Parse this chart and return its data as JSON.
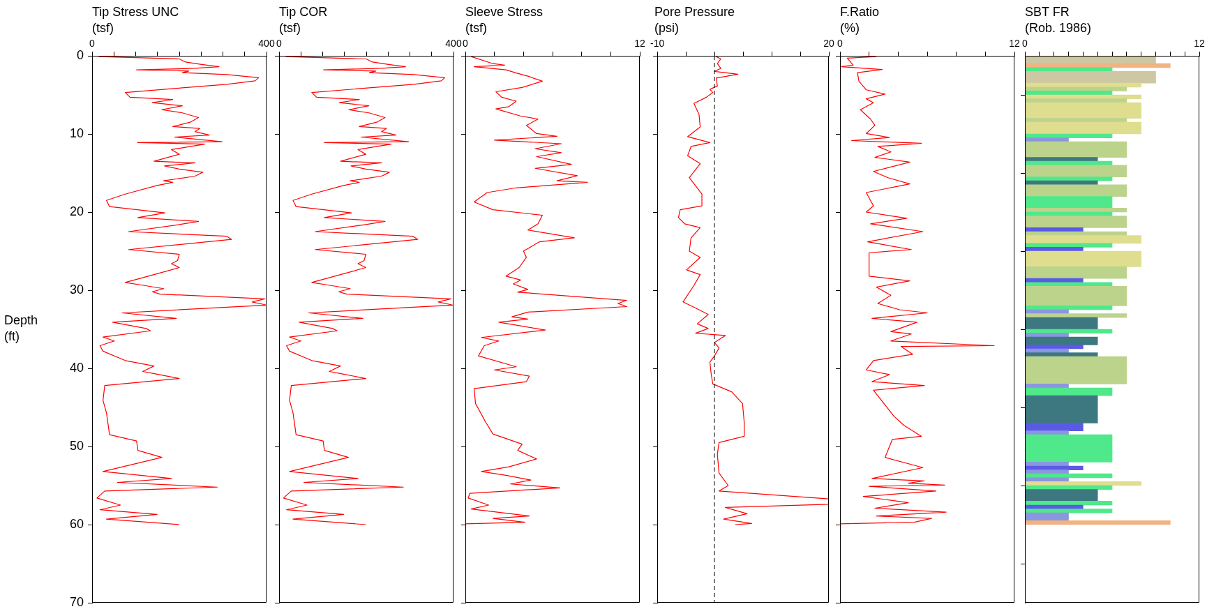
{
  "chart_data": [
    {
      "type": "line",
      "title": "Tip Stress UNC",
      "xlabel": "(tsf)",
      "ylabel": "Depth (ft)",
      "xlim": [
        0,
        400
      ],
      "xticks": [
        0,
        {
          "value": 50,
          "label": null
        },
        {
          "value": 100,
          "label": null
        },
        {
          "value": 150,
          "label": null
        },
        {
          "value": 200,
          "label": null
        },
        {
          "value": 250,
          "label": null
        },
        {
          "value": 300,
          "label": null
        },
        {
          "value": 350,
          "label": null
        },
        400
      ],
      "ylim": [
        70,
        0
      ],
      "yticks": [
        0,
        10,
        20,
        30,
        40,
        50,
        60,
        70
      ],
      "x": [
        15,
        200,
        214,
        251,
        291,
        236,
        102,
        222,
        207,
        309,
        382,
        374,
        309,
        207,
        76,
        87,
        185,
        138,
        207,
        160,
        207,
        244,
        225,
        185,
        247,
        236,
        269,
        189,
        298,
        104,
        258,
        182,
        200,
        142,
        236,
        166,
        200,
        254,
        236,
        164,
        185,
        149,
        76,
        33,
        40,
        167,
        105,
        244,
        200,
        84,
        309,
        320,
        84,
        200,
        196,
        182,
        200,
        142,
        76,
        120,
        164,
        138,
        156,
        396,
        367,
        400,
        69,
        193,
        47,
        124,
        134,
        25,
        51,
        18,
        25,
        76,
        142,
        116,
        145,
        200,
        29,
        25,
        33,
        40,
        102,
        105,
        160,
        25,
        182,
        58,
        287,
        29,
        11,
        65,
        18,
        149,
        33,
        200
      ],
      "series": [
        {
          "color": "#ff0000",
          "values": [
            0.1,
            0.4,
            0.8,
            1.1,
            1.4,
            1.6,
            1.8,
            1.95,
            2.15,
            2.4,
            2.8,
            3.2,
            3.65,
            4.1,
            4.7,
            5.3,
            5.6,
            6.0,
            6.4,
            6.9,
            7.3,
            7.9,
            8.5,
            9.05,
            9.3,
            9.7,
            10.15,
            10.4,
            11.0,
            11.1,
            11.3,
            12.0,
            12.6,
            13.5,
            13.7,
            14.1,
            14.5,
            14.9,
            15.4,
            16.0,
            16.2,
            16.6,
            17.7,
            18.5,
            19.3,
            20.1,
            20.7,
            21.2,
            21.6,
            22.5,
            23.1,
            23.5,
            24.8,
            25.4,
            26.2,
            26.6,
            27.1,
            28.0,
            29.0,
            29.4,
            29.8,
            30.2,
            30.5,
            31.1,
            31.5,
            31.9,
            32.9,
            33.6,
            34.1,
            34.9,
            35.2,
            36.0,
            36.5,
            37.1,
            37.8,
            39.0,
            39.7,
            40.4,
            40.7,
            41.3,
            42.2,
            44.1,
            45.7,
            48.5,
            49.3,
            50.5,
            51.4,
            53.2,
            54.1,
            54.6,
            55.2,
            55.7,
            56.6,
            57.5,
            58.1,
            58.7,
            59.3,
            60.0
          ]
        }
      ]
    },
    {
      "type": "line",
      "title": "Tip COR",
      "xlabel": "(tsf)",
      "tick_labels": "x",
      "xlim": [
        0,
        400
      ],
      "xticks": [
        0,
        {
          "value": 50,
          "label": null
        },
        {
          "value": 100,
          "label": null
        },
        {
          "value": 150,
          "label": null
        },
        {
          "value": 200,
          "label": null
        },
        {
          "value": 250,
          "label": null
        },
        {
          "value": 300,
          "label": null
        },
        {
          "value": 350,
          "label": null
        },
        400
      ],
      "ylim": [
        70,
        0
      ],
      "yticks": [
        0,
        10,
        20,
        30,
        40,
        50,
        60,
        70
      ],
      "x": [
        15,
        200,
        214,
        251,
        290,
        236,
        102,
        222,
        207,
        309,
        380,
        372,
        309,
        207,
        75,
        86,
        184,
        138,
        206,
        160,
        206,
        243,
        224,
        184,
        246,
        235,
        268,
        188,
        297,
        104,
        257,
        181,
        199,
        141,
        235,
        165,
        199,
        253,
        235,
        163,
        184,
        148,
        75,
        32,
        39,
        166,
        104,
        243,
        199,
        83,
        307,
        318,
        83,
        199,
        195,
        181,
        199,
        141,
        75,
        119,
        163,
        137,
        155,
        394,
        365,
        398,
        68,
        192,
        46,
        123,
        133,
        24,
        50,
        17,
        24,
        75,
        141,
        115,
        144,
        199,
        28,
        24,
        32,
        39,
        101,
        104,
        159,
        24,
        181,
        57,
        285,
        28,
        10,
        64,
        17,
        148,
        32,
        199
      ],
      "series": [
        {
          "color": "#ff0000",
          "values": [
            0.1,
            0.4,
            0.8,
            1.1,
            1.4,
            1.6,
            1.8,
            1.95,
            2.15,
            2.4,
            2.8,
            3.2,
            3.65,
            4.1,
            4.7,
            5.3,
            5.6,
            6.0,
            6.4,
            6.9,
            7.3,
            7.9,
            8.5,
            9.05,
            9.3,
            9.7,
            10.15,
            10.4,
            11.0,
            11.1,
            11.3,
            12.0,
            12.6,
            13.5,
            13.7,
            14.1,
            14.5,
            14.9,
            15.4,
            16.0,
            16.2,
            16.6,
            17.7,
            18.5,
            19.3,
            20.1,
            20.7,
            21.2,
            21.6,
            22.5,
            23.1,
            23.5,
            24.8,
            25.4,
            26.2,
            26.6,
            27.1,
            28.0,
            29.0,
            29.4,
            29.8,
            30.2,
            30.5,
            31.1,
            31.5,
            31.9,
            32.9,
            33.6,
            34.1,
            34.9,
            35.2,
            36.0,
            36.5,
            37.1,
            37.8,
            39.0,
            39.7,
            40.4,
            40.7,
            41.3,
            42.2,
            44.1,
            45.7,
            48.5,
            49.3,
            50.5,
            51.4,
            53.2,
            54.1,
            54.6,
            55.2,
            55.7,
            56.6,
            57.5,
            58.1,
            58.7,
            59.3,
            60.0
          ]
        }
      ]
    },
    {
      "type": "line",
      "title": "Sleeve Stress",
      "xlabel": "(tsf)",
      "tick_labels": "x",
      "xlim": [
        0,
        12
      ],
      "xticks": [
        0,
        {
          "value": 2,
          "label": null
        },
        {
          "value": 4,
          "label": null
        },
        {
          "value": 6,
          "label": null
        },
        {
          "value": 8,
          "label": null
        },
        {
          "value": 10,
          "label": null
        },
        12
      ],
      "ylim": [
        70,
        0
      ],
      "yticks": [
        0,
        10,
        20,
        30,
        40,
        50,
        60,
        70
      ],
      "x": [
        0.4,
        1.9,
        2.7,
        0.6,
        2.8,
        3.5,
        4.3,
        5.3,
        3.9,
        2.1,
        2.5,
        3.5,
        3.0,
        2.1,
        3.8,
        5.0,
        4.2,
        4.9,
        6.3,
        2.0,
        6.6,
        4.8,
        6.6,
        4.9,
        7.3,
        4.8,
        7.7,
        6.3,
        8.4,
        3.5,
        1.5,
        0.6,
        1.9,
        5.3,
        5.0,
        4.3,
        7.5,
        5.1,
        4.0,
        4.2,
        3.7,
        2.8,
        3.8,
        3.3,
        4.3,
        3.6,
        11.1,
        10.5,
        11.1,
        4.3,
        3.2,
        4.3,
        2.3,
        5.5,
        1.1,
        2.3,
        1.3,
        0.9,
        3.5,
        2.0,
        4.4,
        4.2,
        0.6,
        0.7,
        1.4,
        1.9,
        3.9,
        3.6,
        4.9,
        3.0,
        1.1,
        2.8,
        4.5,
        3.1,
        6.5,
        0.3,
        0.2,
        1.6,
        0.4,
        4.4,
        1.9,
        4.1,
        0
      ],
      "series": [
        {
          "color": "#ff0000",
          "values": [
            0.1,
            1.0,
            1.2,
            1.4,
            1.8,
            2.2,
            2.6,
            3.25,
            4.05,
            4.6,
            5.3,
            5.8,
            6.5,
            6.8,
            7.7,
            8.1,
            8.9,
            9.95,
            10.3,
            10.8,
            11.25,
            11.9,
            12.4,
            12.9,
            13.9,
            14.4,
            15.35,
            16.0,
            16.2,
            16.9,
            17.5,
            18.7,
            19.7,
            20.4,
            21.5,
            22.3,
            23.3,
            23.8,
            25.0,
            25.8,
            27.1,
            28.2,
            28.7,
            29.2,
            29.9,
            30.25,
            31.3,
            31.7,
            32.1,
            32.8,
            33.4,
            33.7,
            34.1,
            35.1,
            36.05,
            36.5,
            37.1,
            38.4,
            39.8,
            40.2,
            41.0,
            41.7,
            42.6,
            44.5,
            46.9,
            48.4,
            49.7,
            50.5,
            51.6,
            52.6,
            53.2,
            53.7,
            54.3,
            54.8,
            55.3,
            56.0,
            56.6,
            57.5,
            58.0,
            58.9,
            59.2,
            59.7,
            59.9
          ]
        }
      ]
    },
    {
      "type": "line",
      "title": "Pore Pressure",
      "xlabel": "(psi)",
      "tick_labels": "x",
      "xlim": [
        -10,
        20
      ],
      "xticks": [
        -10,
        {
          "value": -5,
          "label": null
        },
        {
          "value": 0,
          "label": null
        },
        {
          "value": 5,
          "label": null
        },
        {
          "value": 10,
          "label": null
        },
        {
          "value": 15,
          "label": null
        },
        20
      ],
      "ylim": [
        70,
        0
      ],
      "yticks": [
        0,
        10,
        20,
        30,
        40,
        50,
        60,
        70
      ],
      "ref_lines": [
        {
          "axis": "x",
          "value": 0,
          "color": "#000000",
          "line_style": "dashed"
        }
      ],
      "x": [
        0.3,
        1.1,
        0.5,
        1.1,
        0,
        4.1,
        0.3,
        0.5,
        -0.8,
        -0.3,
        -1.4,
        -3.6,
        -2.7,
        -2.5,
        -4.7,
        -0.8,
        -4.1,
        -4.7,
        -2.5,
        -4.4,
        -2.2,
        -2.2,
        -6.0,
        -6.3,
        -5.2,
        -2.5,
        -4.1,
        -4.4,
        -2.5,
        -4.9,
        -2.5,
        -3.6,
        -5.5,
        -2.7,
        -1.1,
        -3.0,
        -1.1,
        -3.3,
        1.9,
        0,
        0.8,
        0,
        -0.8,
        -0.6,
        -0.3,
        3.0,
        4.9,
        5.2,
        5.2,
        0.8,
        0.5,
        0.8,
        2.4,
        0.8,
        20,
        20,
        1.9,
        5.7,
        1.6,
        6.5,
        3.6
      ],
      "series": [
        {
          "color": "#ff0000",
          "values": [
            0.1,
            0.4,
            1.0,
            1.6,
            2.0,
            2.35,
            2.85,
            3.85,
            4.3,
            4.7,
            5.3,
            6.1,
            7.5,
            9.1,
            10.35,
            11.1,
            11.6,
            12.8,
            13.8,
            15.6,
            17.7,
            19.2,
            19.7,
            20.7,
            21.5,
            22.0,
            23.3,
            25.0,
            25.8,
            27.4,
            28.0,
            29.4,
            31.5,
            32.5,
            33.1,
            34.3,
            34.9,
            35.5,
            35.8,
            36.7,
            37.4,
            38.4,
            39.2,
            40.6,
            42.0,
            43.0,
            44.5,
            46.9,
            48.7,
            49.5,
            51.0,
            53.4,
            55.0,
            55.7,
            56.7,
            57.4,
            57.8,
            58.6,
            59.3,
            59.85,
            60.0
          ]
        }
      ]
    },
    {
      "type": "line",
      "title": "F.Ratio",
      "xlabel": "(%)",
      "tick_labels": "x",
      "xlim": [
        0,
        12
      ],
      "xticks": [
        0,
        {
          "value": 2,
          "label": null
        },
        {
          "value": 4,
          "label": null
        },
        {
          "value": 6,
          "label": null
        },
        {
          "value": 8,
          "label": null
        },
        {
          "value": 10,
          "label": null
        },
        12
      ],
      "ylim": [
        70,
        0
      ],
      "yticks": [
        0,
        10,
        20,
        30,
        40,
        50,
        60,
        70
      ],
      "x": [
        2.5,
        0.5,
        0.9,
        0.1,
        2.9,
        1.2,
        1.3,
        1.8,
        3.1,
        1.8,
        2.3,
        1.4,
        2.1,
        2.4,
        1.8,
        3.4,
        0.8,
        5.6,
        2.6,
        3.5,
        2.4,
        4.8,
        2.3,
        3.3,
        4.8,
        1.8,
        2.3,
        1.8,
        4.6,
        2.1,
        5.7,
        1.9,
        4.9,
        2.0,
        2.0,
        4.8,
        2.5,
        3.5,
        2.6,
        4.1,
        6.0,
        2.2,
        5.3,
        3.5,
        4.9,
        3.5,
        10.6,
        4.2,
        5.0,
        2.3,
        1.8,
        3.4,
        2.2,
        5.8,
        2.3,
        3.7,
        4.4,
        5.6,
        3.6,
        3.1,
        5.7,
        2.2,
        5.8,
        4.7,
        7.2,
        2.0,
        6.6,
        1.6,
        4.7,
        2.4,
        7.3,
        2.5,
        6.3,
        5.1,
        0
      ],
      "series": [
        {
          "color": "#ff0000",
          "values": [
            0.1,
            0.3,
            1.2,
            1.4,
            1.75,
            2.15,
            3.25,
            4.35,
            4.9,
            5.5,
            6.0,
            6.9,
            8.1,
            8.9,
            9.95,
            10.45,
            10.85,
            11.2,
            11.6,
            12.3,
            13.0,
            13.6,
            14.8,
            15.6,
            16.4,
            17.5,
            19.2,
            20.0,
            20.8,
            21.5,
            22.5,
            23.8,
            24.8,
            25.2,
            28.2,
            28.8,
            29.6,
            30.65,
            31.7,
            32.5,
            32.9,
            33.6,
            34.1,
            35.3,
            35.6,
            36.5,
            37.1,
            37.2,
            38.2,
            39.0,
            40.2,
            40.8,
            41.7,
            42.2,
            42.8,
            46.1,
            47.3,
            48.7,
            49.1,
            51.4,
            52.7,
            54.1,
            54.4,
            54.7,
            54.95,
            55.1,
            55.7,
            56.4,
            57.2,
            57.9,
            58.4,
            58.9,
            59.2,
            59.7,
            59.9
          ]
        }
      ]
    },
    {
      "type": "bar",
      "orientation": "horizontal",
      "title": "SBT FR",
      "xlabel": "(Rob. 1986)",
      "tick_labels": "x",
      "xlim": [
        0,
        12
      ],
      "xticks": [
        0,
        {
          "value": 1,
          "label": null
        },
        {
          "value": 2,
          "label": null
        },
        {
          "value": 3,
          "label": null
        },
        {
          "value": 4,
          "label": null
        },
        {
          "value": 5,
          "label": null
        },
        {
          "value": 6,
          "label": null
        },
        {
          "value": 7,
          "label": null
        },
        {
          "value": 8,
          "label": null
        },
        {
          "value": 9,
          "label": null
        },
        {
          "value": 10,
          "label": null
        },
        {
          "value": 11,
          "label": null
        },
        12
      ],
      "ylim": [
        70,
        0
      ],
      "yticks": [
        0,
        10,
        20,
        30,
        40,
        50,
        60,
        70
      ],
      "x": [
        0.25,
        0.75,
        1.25,
        1.75,
        2.25,
        2.75,
        3.25,
        3.75,
        4.25,
        4.75,
        5.25,
        5.75,
        6.25,
        6.75,
        7.25,
        7.75,
        8.25,
        8.75,
        9.25,
        9.75,
        10.25,
        10.75,
        11.25,
        11.75,
        12.25,
        12.75,
        13.25,
        13.75,
        14.25,
        14.75,
        15.25,
        15.75,
        16.25,
        16.75,
        17.25,
        17.75,
        18.25,
        18.75,
        19.25,
        19.75,
        20.25,
        20.75,
        21.25,
        21.75,
        22.25,
        22.75,
        23.25,
        23.75,
        24.25,
        24.75,
        25.25,
        25.75,
        26.25,
        26.75,
        27.25,
        27.75,
        28.25,
        28.75,
        29.25,
        29.75,
        30.25,
        30.75,
        31.25,
        31.75,
        32.25,
        32.75,
        33.25,
        33.75,
        34.25,
        34.75,
        35.25,
        35.75,
        36.25,
        36.75,
        37.25,
        37.75,
        38.25,
        38.75,
        39.25,
        39.75,
        40.25,
        40.75,
        41.25,
        41.75,
        42.25,
        42.75,
        43.25,
        43.75,
        44.25,
        44.75,
        45.25,
        45.75,
        46.25,
        46.75,
        47.25,
        47.75,
        48.25,
        48.75,
        49.25,
        49.75,
        50.25,
        50.75,
        51.25,
        51.75,
        52.25,
        52.75,
        53.25,
        53.75,
        54.25,
        54.75,
        55.25,
        55.75,
        56.25,
        56.75,
        57.25,
        57.75,
        58.25,
        58.75,
        59.25,
        59.75
      ],
      "values": [
        9,
        9,
        10,
        6,
        9,
        9,
        9,
        8,
        7,
        6,
        8,
        7,
        8,
        8,
        8,
        8,
        7,
        8,
        8,
        8,
        6,
        3,
        7,
        7,
        7,
        7,
        5,
        6,
        7,
        7,
        7,
        6,
        5,
        7,
        7,
        7,
        6,
        6,
        6,
        7,
        6,
        7,
        7,
        7,
        4,
        7,
        8,
        8,
        6,
        4,
        8,
        8,
        8,
        8,
        7,
        7,
        7,
        4,
        6,
        7,
        7,
        7,
        7,
        7,
        6,
        3,
        7,
        5,
        5,
        5,
        6,
        3,
        5,
        5,
        4,
        3,
        5,
        7,
        7,
        7,
        7,
        7,
        7,
        7,
        3,
        6,
        6,
        5,
        5,
        5,
        5,
        5,
        5,
        5,
        4,
        4,
        3,
        6,
        6,
        6,
        6,
        6,
        6,
        6,
        3,
        4,
        3,
        6,
        3,
        8,
        6,
        5,
        5,
        5,
        6,
        4,
        6,
        3,
        3,
        10
      ],
      "colors": [
        "#cdc7a3",
        "#cdc7a3",
        "#f0b482",
        "#4fe88a",
        "#cdc7a3",
        "#cdc7a3",
        "#cdc7a3",
        "#dede8e",
        "#bcd38c",
        "#4fe88a",
        "#dede8e",
        "#bcd38c",
        "#dede8e",
        "#dede8e",
        "#dede8e",
        "#dede8e",
        "#bcd38c",
        "#dede8e",
        "#dede8e",
        "#dede8e",
        "#4fe88a",
        "#8a96e0",
        "#bcd38c",
        "#bcd38c",
        "#bcd38c",
        "#bcd38c",
        "#3d7880",
        "#4fe88a",
        "#bcd38c",
        "#bcd38c",
        "#bcd38c",
        "#4fe88a",
        "#3d7880",
        "#bcd38c",
        "#bcd38c",
        "#bcd38c",
        "#4fe88a",
        "#4fe88a",
        "#4fe88a",
        "#bcd38c",
        "#4fe88a",
        "#bcd38c",
        "#bcd38c",
        "#bcd38c",
        "#5a5ae6",
        "#bcd38c",
        "#dede8e",
        "#dede8e",
        "#4fe88a",
        "#5a5ae6",
        "#dede8e",
        "#dede8e",
        "#dede8e",
        "#dede8e",
        "#bcd38c",
        "#bcd38c",
        "#bcd38c",
        "#5a5ae6",
        "#4fe88a",
        "#bcd38c",
        "#bcd38c",
        "#bcd38c",
        "#bcd38c",
        "#bcd38c",
        "#4fe88a",
        "#8a96e0",
        "#bcd38c",
        "#3d7880",
        "#3d7880",
        "#3d7880",
        "#4fe88a",
        "#8a96e0",
        "#3d7880",
        "#3d7880",
        "#5a5ae6",
        "#8a96e0",
        "#3d7880",
        "#bcd38c",
        "#bcd38c",
        "#bcd38c",
        "#bcd38c",
        "#bcd38c",
        "#bcd38c",
        "#bcd38c",
        "#8a96e0",
        "#4fe88a",
        "#4fe88a",
        "#3d7880",
        "#3d7880",
        "#3d7880",
        "#3d7880",
        "#3d7880",
        "#3d7880",
        "#3d7880",
        "#5a5ae6",
        "#5a5ae6",
        "#8a96e0",
        "#4fe88a",
        "#4fe88a",
        "#4fe88a",
        "#4fe88a",
        "#4fe88a",
        "#4fe88a",
        "#4fe88a",
        "#8a96e0",
        "#5a5ae6",
        "#8a96e0",
        "#4fe88a",
        "#8a96e0",
        "#dede8e",
        "#4fe88a",
        "#3d7880",
        "#3d7880",
        "#3d7880",
        "#4fe88a",
        "#5a5ae6",
        "#4fe88a",
        "#8a96e0",
        "#8a96e0",
        "#f0b482"
      ]
    }
  ]
}
